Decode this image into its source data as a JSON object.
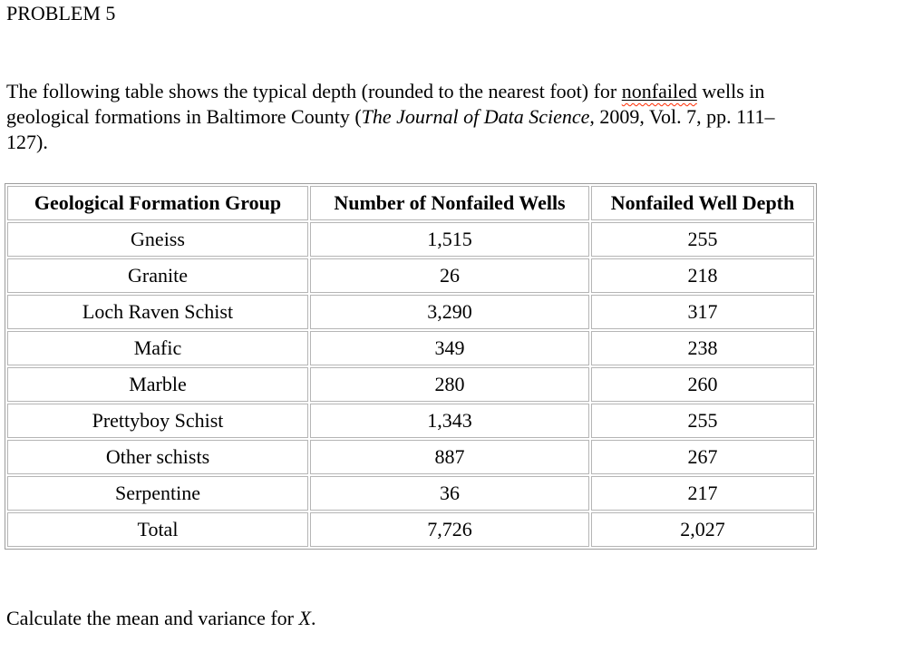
{
  "title": "PROBLEM 5",
  "paragraph": {
    "lines": [
      {
        "segments": [
          {
            "text": "The following table shows the typical depth (rounded to the nearest foot) for "
          },
          {
            "text": "nonfailed",
            "underline": true,
            "spellcheck": true
          },
          {
            "text": " wells in"
          }
        ]
      },
      {
        "segments": [
          {
            "text": "geological formations in Baltimore County ("
          },
          {
            "text": "The Journal of Data Science",
            "italic": true
          },
          {
            "text": ", 2009, Vol. 7, pp. 111–"
          }
        ]
      },
      {
        "segments": [
          {
            "text": "127)."
          }
        ]
      }
    ]
  },
  "table": {
    "headers": [
      "Geological Formation Group",
      "Number of Nonfailed Wells",
      "Nonfailed Well Depth"
    ],
    "rows": [
      [
        "Gneiss",
        "1,515",
        "255"
      ],
      [
        "Granite",
        "26",
        "218"
      ],
      [
        "Loch Raven Schist",
        "3,290",
        "317"
      ],
      [
        "Mafic",
        "349",
        "238"
      ],
      [
        "Marble",
        "280",
        "260"
      ],
      [
        "Prettyboy Schist",
        "1,343",
        "255"
      ],
      [
        "Other schists",
        "887",
        "267"
      ],
      [
        "Serpentine",
        "36",
        "217"
      ],
      [
        "Total",
        "7,726",
        "2,027"
      ]
    ]
  },
  "footer": {
    "segments": [
      {
        "text": "Calculate the mean and variance for "
      },
      {
        "text": "X",
        "italic": true
      },
      {
        "text": "."
      }
    ]
  },
  "colors": {
    "text": "#000000",
    "spellcheck_squiggle": "#ff2a00",
    "table_border_outer": "#9c9c9c",
    "table_border_inner": "#b5b5b5"
  }
}
